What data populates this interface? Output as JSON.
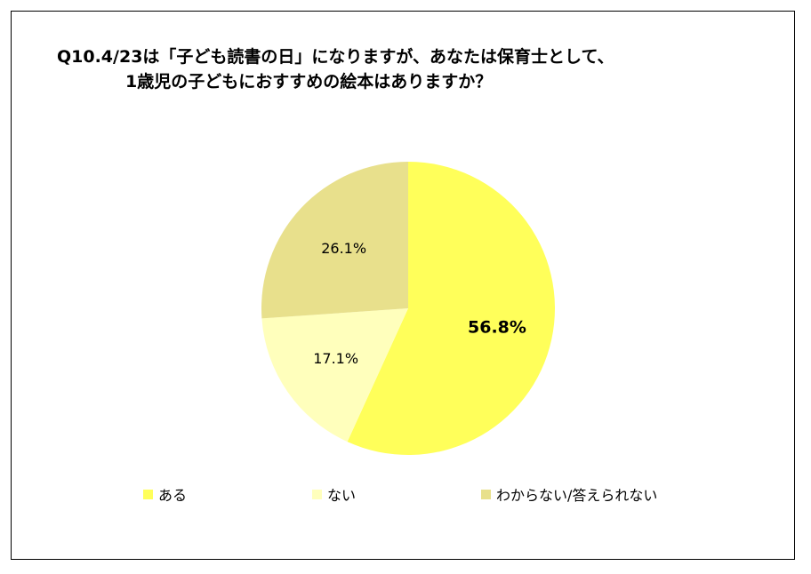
{
  "chart_data": {
    "type": "pie",
    "title_line1": "Q10.4/23は「子ども読書の日」になりますが、あなたは保育士として、",
    "title_line2": "1歳児の子どもにおすすめの絵本はありますか？",
    "slices": [
      {
        "label": "ある",
        "value": 56.8,
        "value_label": "56.8%",
        "color": "#ffff5a",
        "bold": true
      },
      {
        "label": "ない",
        "value": 17.1,
        "value_label": "17.1%",
        "color": "#ffffbc",
        "bold": false
      },
      {
        "label": "わからない/答えられない",
        "value": 26.1,
        "value_label": "26.1%",
        "color": "#e8e08c",
        "bold": false
      }
    ],
    "legend_placement": "bottom",
    "start_angle": "12 o'clock",
    "direction": "clockwise"
  }
}
